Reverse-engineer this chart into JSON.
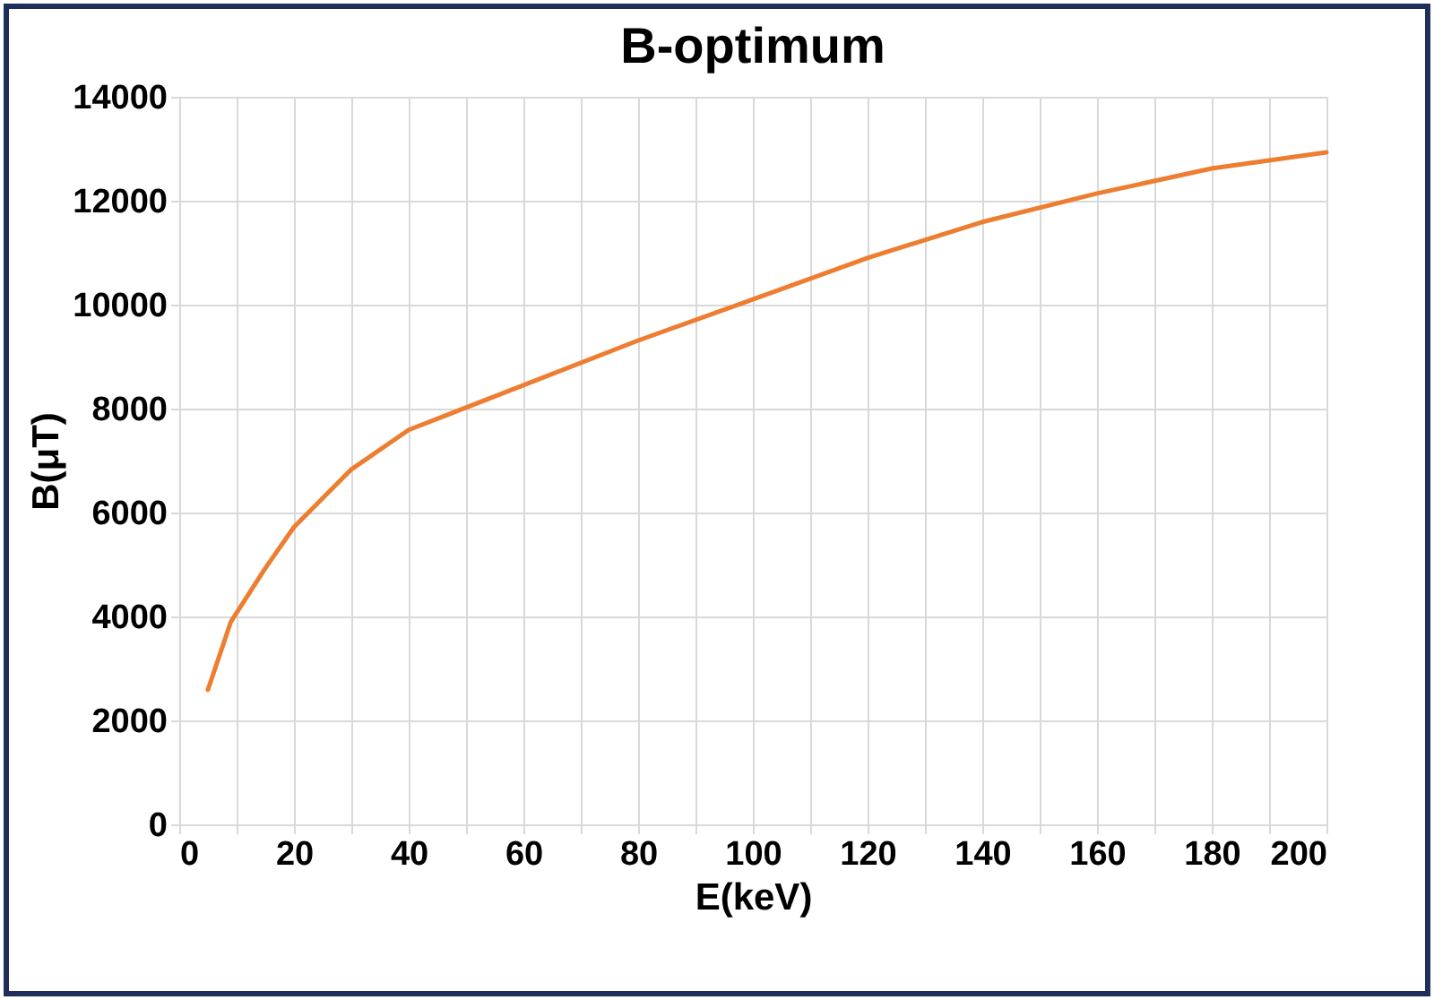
{
  "chart_data": {
    "type": "line",
    "title": "B-optimum",
    "xlabel": "E(keV)",
    "ylabel": "B(μT)",
    "x": [
      5,
      9,
      15,
      20,
      30,
      40,
      60,
      80,
      100,
      120,
      140,
      160,
      180,
      200
    ],
    "series": [
      {
        "color": "#ed7d31",
        "values": [
          2590,
          3900,
          4930,
          5720,
          6830,
          7590,
          8450,
          9310,
          10100,
          10900,
          11590,
          12140,
          12620,
          12930
        ]
      }
    ],
    "xlim": [
      0,
      200
    ],
    "ylim": [
      0,
      14000
    ],
    "xticks": [
      0,
      {
        "value": 10,
        "label": null
      },
      20,
      {
        "value": 30,
        "label": null
      },
      40,
      {
        "value": 50,
        "label": null
      },
      60,
      {
        "value": 70,
        "label": null
      },
      80,
      {
        "value": 90,
        "label": null
      },
      100,
      {
        "value": 110,
        "label": null
      },
      120,
      {
        "value": 130,
        "label": null
      },
      140,
      {
        "value": 150,
        "label": null
      },
      160,
      {
        "value": 170,
        "label": null
      },
      180,
      {
        "value": 190,
        "label": null
      },
      200
    ],
    "yticks": [
      0,
      2000,
      4000,
      6000,
      8000,
      10000,
      12000,
      14000
    ],
    "grid": true,
    "marker": "none",
    "line_style": "solid"
  }
}
